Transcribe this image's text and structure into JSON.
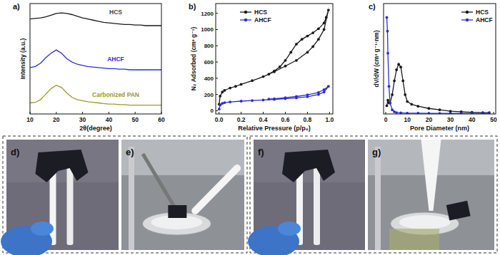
{
  "chart_data": [
    {
      "type": "line",
      "title": "a)",
      "x_label": "2θ(degree)",
      "y_label": "Intensity (a.u.)",
      "x": [
        10,
        12,
        14,
        16,
        18,
        20,
        22,
        24,
        26,
        28,
        30,
        32,
        34,
        36,
        38,
        40,
        42,
        44,
        46,
        48,
        50,
        52,
        54,
        56,
        58,
        60
      ],
      "xlim": [
        10,
        60
      ],
      "xticks": [
        10,
        20,
        30,
        40,
        50,
        60
      ],
      "ylim": [
        0,
        100
      ],
      "tick_labels": "x",
      "legend": "inline",
      "line_style": "solid",
      "series": [
        {
          "name": "HCS",
          "color": "#1a1a1a",
          "values": [
            86,
            86.5,
            87,
            88,
            89.5,
            91,
            91.5,
            91,
            90,
            88.5,
            87,
            86,
            85,
            84,
            83,
            82.5,
            82,
            81.5,
            81,
            81,
            80.5,
            80.5,
            80,
            80,
            80,
            80
          ]
        },
        {
          "name": "AHCF",
          "color": "#2d2dd2",
          "values": [
            42,
            43,
            46,
            51,
            55,
            58,
            55,
            50,
            47,
            45,
            44,
            43,
            42.5,
            42,
            41.5,
            41,
            41,
            40.5,
            40.5,
            40,
            40,
            40,
            40,
            40,
            40,
            40
          ]
        },
        {
          "name": "Carbonized PAN",
          "color": "#9a9a2a",
          "values": [
            10,
            10.5,
            13,
            18,
            23,
            26,
            24,
            19,
            15,
            13,
            12,
            11,
            10.5,
            10,
            9.5,
            9,
            9,
            8.5,
            8.5,
            8,
            8,
            8,
            8,
            8,
            8,
            8
          ]
        }
      ]
    },
    {
      "type": "line",
      "title": "b)",
      "x_label": "Relative Pressure (p/p₀)",
      "y_label": "N₂ Adsorbed (cm³ g⁻¹)",
      "xlim": [
        -0.03,
        1.03
      ],
      "xticks": [
        {
          "value": 0,
          "label": "0.0"
        },
        {
          "value": 0.2,
          "label": "0.2"
        },
        {
          "value": 0.4,
          "label": "0.4"
        },
        {
          "value": 0.6,
          "label": "0.6"
        },
        {
          "value": 0.8,
          "label": "0.8"
        },
        {
          "value": 1,
          "label": "1.0"
        }
      ],
      "ylim": [
        -40,
        1320
      ],
      "yticks": [
        0,
        200,
        400,
        600,
        800,
        1000,
        1200
      ],
      "legend": "top-left",
      "marker": "circle",
      "line_style": "solid",
      "series": [
        {
          "name": "HCS",
          "color": "#1a1a1a",
          "x": [
            0.001,
            0.01,
            0.03,
            0.05,
            0.1,
            0.15,
            0.2,
            0.3,
            0.4,
            0.5,
            0.6,
            0.7,
            0.8,
            0.85,
            0.9,
            0.95,
            0.99,
            0.97,
            0.95,
            0.9,
            0.85,
            0.8,
            0.75,
            0.7,
            0.65,
            0.6,
            0.55,
            0.5,
            0.45
          ],
          "values": [
            80,
            180,
            230,
            250,
            280,
            300,
            325,
            370,
            420,
            480,
            550,
            620,
            720,
            790,
            880,
            1000,
            1240,
            1150,
            1080,
            1010,
            960,
            920,
            880,
            820,
            720,
            620,
            540,
            490,
            450
          ]
        },
        {
          "name": "AHCF",
          "color": "#2d2dd2",
          "x": [
            0.001,
            0.01,
            0.03,
            0.05,
            0.1,
            0.2,
            0.3,
            0.4,
            0.5,
            0.6,
            0.7,
            0.8,
            0.9,
            0.95,
            0.99,
            0.95,
            0.9,
            0.8,
            0.7,
            0.6,
            0.5,
            0.45
          ],
          "values": [
            20,
            70,
            90,
            100,
            108,
            118,
            125,
            132,
            140,
            148,
            158,
            172,
            200,
            230,
            300,
            260,
            225,
            195,
            175,
            160,
            148,
            142
          ]
        }
      ]
    },
    {
      "type": "line",
      "title": "c)",
      "x_label": "Pore Diameter (nm)",
      "y_label": "dV/dW (cm³ g⁻¹·nm)",
      "xlim": [
        -1,
        51
      ],
      "xticks": [
        0,
        10,
        20,
        30,
        40,
        50
      ],
      "ylim": [
        0,
        0.4
      ],
      "tick_labels": "x",
      "legend": "top-right",
      "marker": "circle",
      "line_style": "solid",
      "series": [
        {
          "name": "HCS",
          "color": "#1a1a1a",
          "x": [
            0.5,
            1,
            1.5,
            2,
            3,
            4,
            5,
            6,
            7,
            8,
            9,
            10,
            12,
            15,
            20,
            25,
            30,
            35,
            40,
            45,
            48
          ],
          "values": [
            0.03,
            0.05,
            0.04,
            0.04,
            0.07,
            0.12,
            0.16,
            0.18,
            0.17,
            0.12,
            0.07,
            0.045,
            0.035,
            0.028,
            0.02,
            0.015,
            0.01,
            0.008,
            0.006,
            0.005,
            0.005
          ]
        },
        {
          "name": "AHCF",
          "color": "#2d2dd2",
          "x": [
            0.5,
            0.8,
            1,
            1.5,
            2,
            3,
            4,
            5,
            7,
            10,
            15,
            20,
            25,
            30,
            35,
            40,
            45,
            48
          ],
          "values": [
            0.35,
            0.3,
            0.22,
            0.1,
            0.04,
            0.015,
            0.008,
            0.005,
            0.004,
            0.003,
            0.003,
            0.002,
            0.002,
            0.002,
            0.002,
            0.002,
            0.002,
            0.002
          ]
        }
      ]
    }
  ],
  "photos": [
    {
      "label": "d)"
    },
    {
      "label": "e)"
    },
    {
      "label": "f)"
    },
    {
      "label": "g)"
    }
  ]
}
